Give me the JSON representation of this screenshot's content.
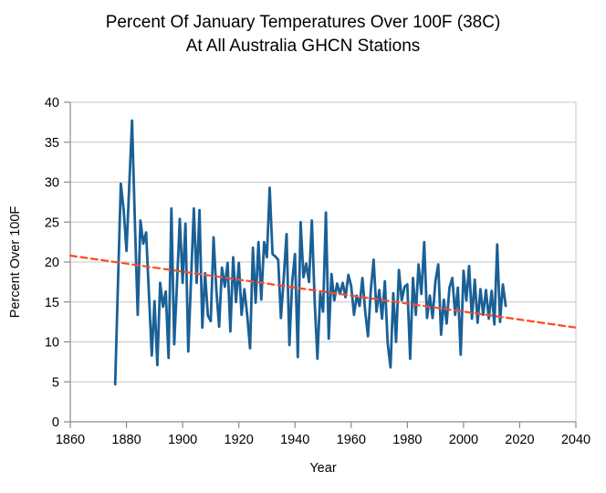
{
  "title": {
    "line1": "Percent Of January Temperatures Over 100F (38C)",
    "line2": "At All Australia GHCN Stations"
  },
  "chart_data": {
    "type": "line",
    "title": "Percent Of January Temperatures Over 100F (38C) At All Australia GHCN Stations",
    "xlabel": "Year",
    "ylabel": "Percent Over 100F",
    "xlim": [
      1860,
      2040
    ],
    "ylim": [
      0,
      40
    ],
    "x_ticks": [
      1860,
      1880,
      1900,
      1920,
      1940,
      1960,
      1980,
      2000,
      2020,
      2040
    ],
    "y_ticks": [
      0,
      5,
      10,
      15,
      20,
      25,
      30,
      35,
      40
    ],
    "grid": "horizontal",
    "legend": "none",
    "series": [
      {
        "name": "Percent of January temperatures over 100F",
        "style": "solid",
        "color": "#1A6096",
        "x_start": 1876,
        "x_step": 1,
        "values": [
          4.7,
          17.5,
          29.8,
          26.5,
          21.4,
          29.5,
          37.7,
          25.0,
          13.4,
          25.2,
          22.3,
          23.7,
          16.0,
          8.3,
          15.1,
          7.1,
          17.4,
          14.4,
          16.3,
          8.0,
          26.7,
          9.7,
          17.5,
          25.4,
          17.4,
          24.8,
          8.8,
          17.7,
          26.7,
          17.4,
          26.5,
          11.8,
          18.6,
          13.3,
          12.6,
          23.1,
          16.6,
          11.9,
          19.3,
          16.9,
          19.9,
          11.3,
          20.6,
          15.0,
          19.9,
          13.4,
          16.6,
          13.3,
          9.2,
          21.8,
          14.9,
          22.5,
          15.3,
          22.5,
          20.6,
          29.3,
          21.0,
          20.7,
          20.3,
          13.0,
          18.0,
          23.5,
          9.6,
          17.5,
          21.0,
          8.1,
          25.0,
          18.1,
          19.8,
          17.5,
          25.2,
          15.1,
          7.9,
          16.1,
          13.8,
          26.2,
          10.4,
          18.5,
          15.2,
          17.3,
          16.0,
          17.4,
          15.6,
          18.4,
          17.0,
          13.4,
          15.8,
          14.5,
          18.0,
          13.8,
          10.7,
          16.5,
          20.3,
          13.8,
          16.5,
          12.9,
          17.6,
          9.8,
          6.8,
          16.1,
          10.0,
          19.0,
          15.2,
          16.9,
          17.2,
          7.9,
          18.0,
          13.4,
          19.7,
          16.0,
          22.5,
          13.0,
          15.8,
          13.0,
          17.6,
          19.7,
          10.9,
          15.3,
          12.3,
          16.8,
          18.0,
          13.4,
          16.8,
          8.4,
          18.9,
          15.2,
          19.5,
          12.9,
          17.8,
          12.4,
          16.6,
          13.4,
          16.5,
          12.9,
          16.4,
          12.2,
          22.2,
          12.5,
          17.2,
          14.5
        ]
      },
      {
        "name": "Linear trend",
        "style": "dashed",
        "color": "#F94D26",
        "x": [
          1860,
          2040
        ],
        "values": [
          20.8,
          11.8
        ]
      }
    ]
  },
  "colors": {
    "series_blue": "#1A6096",
    "trend_red": "#F94D26",
    "gridline": "#C6C6C6",
    "axis": "#8C8C8C",
    "background": "#FFFFFF",
    "text": "#000000"
  }
}
